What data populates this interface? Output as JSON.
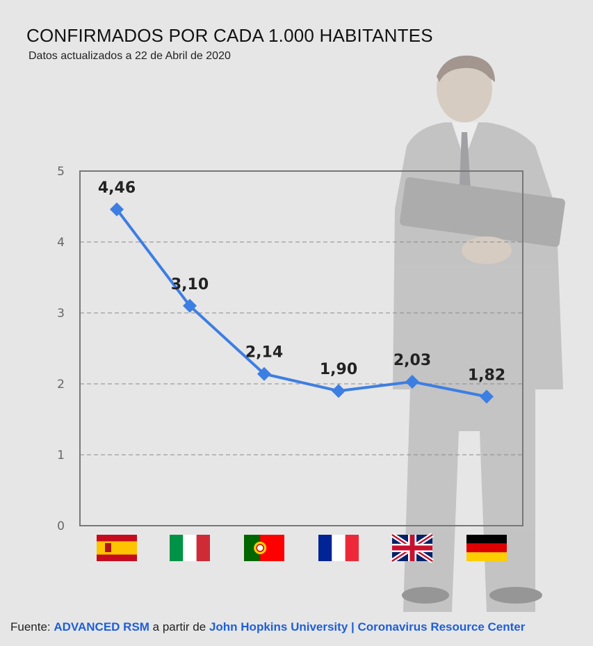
{
  "header": {
    "title": "CONFIRMADOS POR CADA 1.000 HABITANTES",
    "subtitle": "Datos actualizados a 22 de Abril de 2020"
  },
  "footer": {
    "prefix": "Fuente: ",
    "source": "ADVANCED RSM",
    "middle": " a partir de ",
    "origin": "John Hopkins University | Coronavirus Resource Center"
  },
  "colors": {
    "line": "#3d7ee3",
    "link": "#1f5fd6",
    "background": "#e6e6e6"
  },
  "chart_data": {
    "type": "line",
    "title": "CONFIRMADOS POR CADA 1.000 HABITANTES",
    "subtitle": "Datos actualizados a 22 de Abril de 2020",
    "categories": [
      "spain-flag",
      "italy-flag",
      "portugal-flag",
      "france-flag",
      "uk-flag",
      "germany-flag"
    ],
    "series": [
      {
        "values": [
          4.46,
          3.1,
          2.14,
          1.9,
          2.03,
          1.82
        ]
      }
    ],
    "data_labels": [
      "4,46",
      "3,10",
      "2,14",
      "1,90",
      "2,03",
      "1,82"
    ],
    "yticks": [
      "0",
      "1",
      "2",
      "3",
      "4",
      "5"
    ],
    "ylim": [
      0,
      5
    ],
    "grid": true,
    "legend": "none"
  }
}
